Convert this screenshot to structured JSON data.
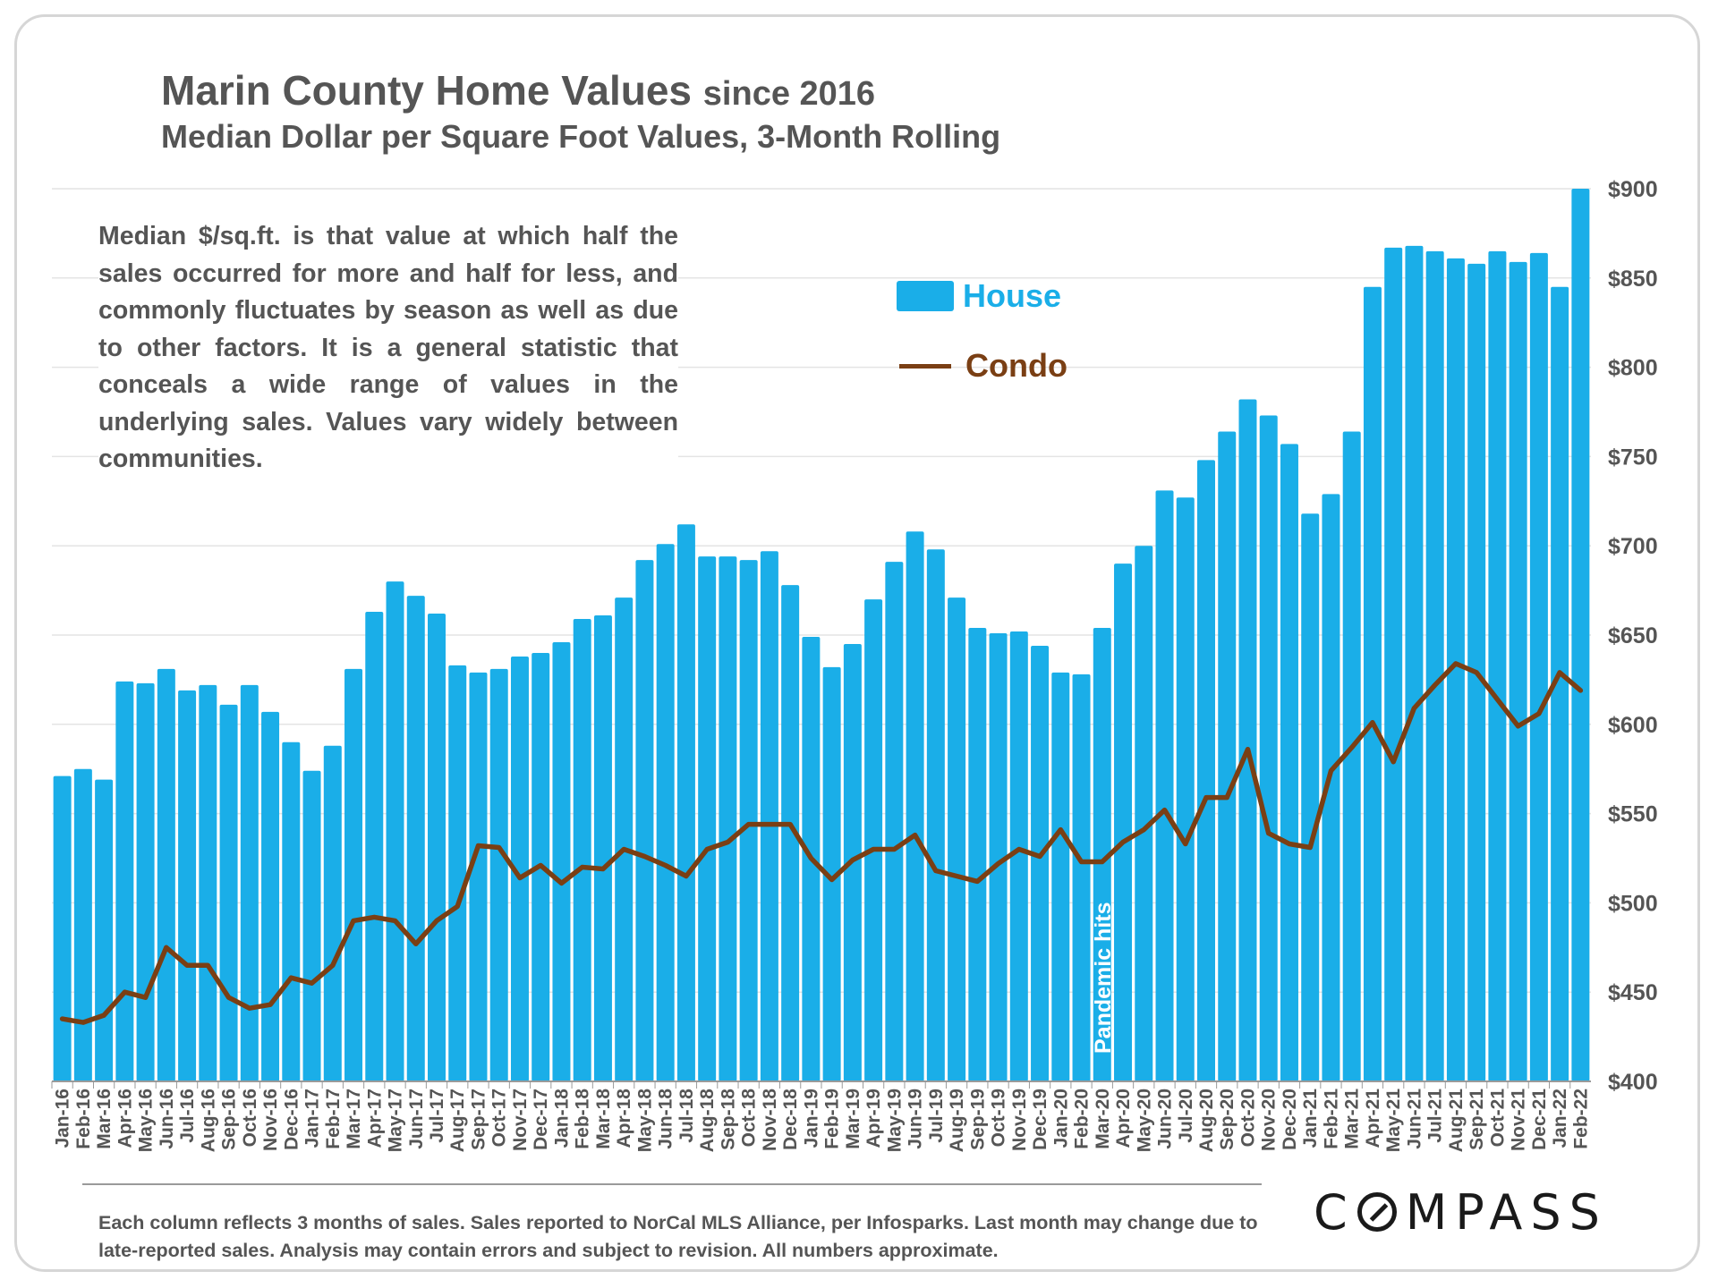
{
  "header": {
    "title": "Marin County Home Values",
    "title_suffix": "since 2016",
    "subtitle": "Median Dollar per Square Foot Values, 3-Month Rolling"
  },
  "note": "Median $/sq.ft. is that value at which half the sales occurred for more and half for less, and commonly fluctuates by season as well as due to other factors. It is a general statistic that conceals a wide range of values in the underlying sales. Values vary widely between communities.",
  "footnote": "Each column reflects 3 months of sales. Sales reported to NorCal MLS Alliance, per Infosparks. Last month may change due to late-reported sales. Analysis may contain errors and subject to revision. All numbers  approximate.",
  "logo": {
    "text": "COMPASS"
  },
  "legend": {
    "house": "House",
    "condo": "Condo"
  },
  "colors": {
    "house": "#1aaee8",
    "condo": "#7a3f14",
    "grid": "#e4e4e4",
    "text": "#555555"
  },
  "chart_data": {
    "type": "bar",
    "title": "Marin County Home Values since 2016",
    "subtitle": "Median Dollar per Square Foot Values, 3-Month Rolling",
    "xlabel": "",
    "ylabel": "",
    "ylim": [
      400,
      900
    ],
    "yticks": [
      "$400",
      "$450",
      "$500",
      "$550",
      "$600",
      "$650",
      "$700",
      "$750",
      "$800",
      "$850",
      "$900"
    ],
    "grid": true,
    "legend_position": "top-center",
    "annotation": {
      "text": "Pandemic hits",
      "category": "Mar-20"
    },
    "categories": [
      "Jan-16",
      "Feb-16",
      "Mar-16",
      "Apr-16",
      "May-16",
      "Jun-16",
      "Jul-16",
      "Aug-16",
      "Sep-16",
      "Oct-16",
      "Nov-16",
      "Dec-16",
      "Jan-17",
      "Feb-17",
      "Mar-17",
      "Apr-17",
      "May-17",
      "Jun-17",
      "Jul-17",
      "Aug-17",
      "Sep-17",
      "Oct-17",
      "Nov-17",
      "Dec-17",
      "Jan-18",
      "Feb-18",
      "Mar-18",
      "Apr-18",
      "May-18",
      "Jun-18",
      "Jul-18",
      "Aug-18",
      "Sep-18",
      "Oct-18",
      "Nov-18",
      "Dec-18",
      "Jan-19",
      "Feb-19",
      "Mar-19",
      "Apr-19",
      "May-19",
      "Jun-19",
      "Jul-19",
      "Aug-19",
      "Sep-19",
      "Oct-19",
      "Nov-19",
      "Dec-19",
      "Jan-20",
      "Feb-20",
      "Mar-20",
      "Apr-20",
      "May-20",
      "Jun-20",
      "Jul-20",
      "Aug-20",
      "Sep-20",
      "Oct-20",
      "Nov-20",
      "Dec-20",
      "Jan-21",
      "Feb-21",
      "Mar-21",
      "Apr-21",
      "May-21",
      "Jun-21",
      "Jul-21",
      "Aug-21",
      "Sep-21",
      "Oct-21",
      "Nov-21",
      "Dec-21",
      "Jan-22",
      "Feb-22"
    ],
    "series": [
      {
        "name": "House",
        "type": "bar",
        "values": [
          571,
          575,
          569,
          624,
          623,
          631,
          619,
          622,
          611,
          622,
          607,
          590,
          574,
          588,
          631,
          663,
          680,
          672,
          662,
          633,
          629,
          631,
          638,
          640,
          646,
          659,
          661,
          671,
          692,
          701,
          712,
          694,
          694,
          692,
          697,
          678,
          649,
          632,
          645,
          670,
          691,
          708,
          698,
          671,
          654,
          651,
          652,
          644,
          629,
          628,
          654,
          690,
          700,
          731,
          727,
          748,
          764,
          782,
          773,
          757,
          718,
          729,
          764,
          845,
          867,
          868,
          865,
          861,
          858,
          865,
          859,
          864,
          845,
          900
        ]
      },
      {
        "name": "Condo",
        "type": "line",
        "values": [
          435,
          433,
          437,
          450,
          447,
          475,
          465,
          465,
          447,
          441,
          443,
          458,
          455,
          465,
          490,
          492,
          490,
          477,
          490,
          498,
          532,
          531,
          514,
          521,
          511,
          520,
          519,
          530,
          526,
          521,
          515,
          530,
          534,
          544,
          544,
          544,
          525,
          513,
          524,
          530,
          530,
          538,
          518,
          515,
          512,
          522,
          530,
          526,
          541,
          523,
          523,
          534,
          541,
          552,
          533,
          559,
          559,
          586,
          539,
          533,
          531,
          574,
          587,
          601,
          579,
          609,
          622,
          634,
          629,
          614,
          599,
          606,
          629,
          619
        ]
      }
    ]
  }
}
